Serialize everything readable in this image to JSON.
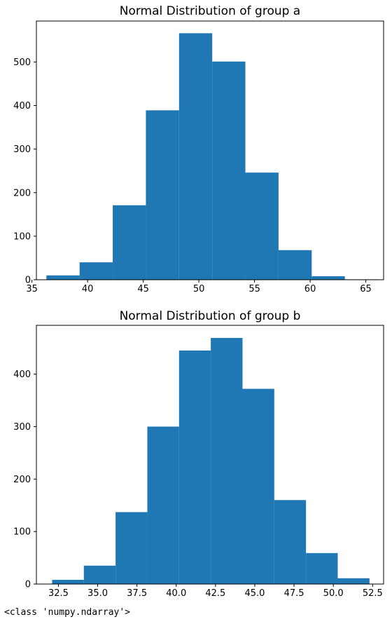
{
  "chart_data": [
    {
      "type": "bar",
      "title": "Normal Distribution of group a",
      "xlabel": "",
      "ylabel": "",
      "xlim": [
        35.4,
        66.6
      ],
      "ylim": [
        0,
        594
      ],
      "bin_edges": [
        36.3,
        39.28,
        42.26,
        45.24,
        48.22,
        51.2,
        54.18,
        57.16,
        60.14,
        63.12,
        66.1
      ],
      "values": [
        10,
        40,
        171,
        389,
        566,
        501,
        246,
        68,
        8,
        1
      ],
      "x_ticks": [
        35,
        40,
        45,
        50,
        55,
        60,
        65
      ],
      "y_ticks": [
        0,
        100,
        200,
        300,
        400,
        500
      ],
      "grid": false,
      "color": "#1f77b4"
    },
    {
      "type": "bar",
      "title": "Normal Distribution of group b",
      "xlabel": "",
      "ylabel": "",
      "xlim": [
        31.1,
        53.2
      ],
      "ylim": [
        0,
        493
      ],
      "bin_edges": [
        32.1,
        34.12,
        36.14,
        38.16,
        40.18,
        42.2,
        44.22,
        46.24,
        48.26,
        50.28,
        52.3
      ],
      "values": [
        8,
        35,
        137,
        300,
        445,
        469,
        372,
        160,
        59,
        11
      ],
      "x_ticks": [
        32.5,
        35.0,
        37.5,
        40.0,
        42.5,
        45.0,
        47.5,
        50.0,
        52.5
      ],
      "y_ticks": [
        0,
        100,
        200,
        300,
        400
      ],
      "grid": false,
      "color": "#1f77b4"
    }
  ],
  "output_text": "<class 'numpy.ndarray'>"
}
